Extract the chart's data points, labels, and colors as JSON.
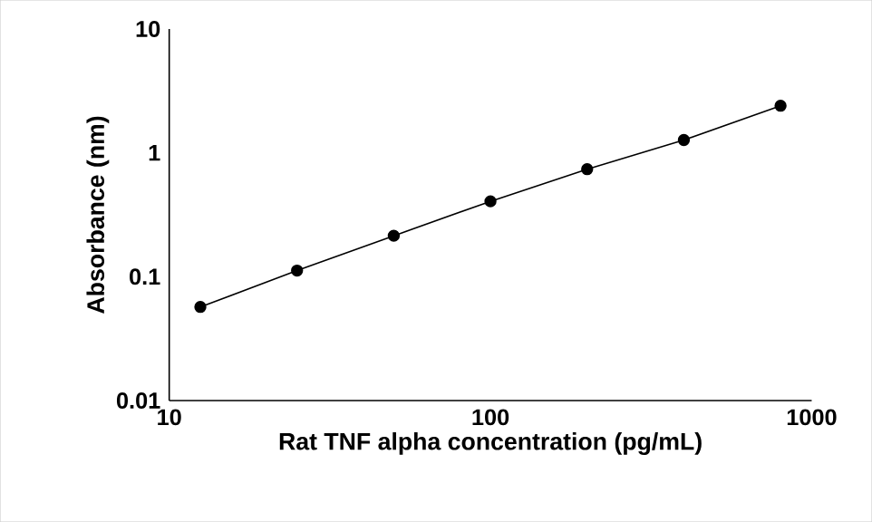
{
  "chart_data": {
    "type": "line",
    "marker": "circle",
    "log": "xy",
    "xlabel": "Rat TNF alpha concentration (pg/mL)",
    "ylabel": "Absorbance (nm)",
    "x": [
      12.5,
      25,
      50,
      100,
      200,
      400,
      800
    ],
    "series": [
      {
        "color": "#000000",
        "values": [
          0.057,
          0.112,
          0.214,
          0.406,
          0.738,
          1.27,
          2.4
        ]
      }
    ],
    "xlim": [
      10,
      1000
    ],
    "xticks": [
      10,
      100,
      1000
    ],
    "ylim": [
      0.01,
      10
    ],
    "yticks": [
      0.01,
      0.1,
      1,
      10
    ]
  }
}
